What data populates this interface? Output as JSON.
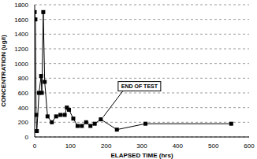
{
  "chart_data": {
    "type": "line",
    "x_label": "ELAPSED TIME (hrs)",
    "y_label": "CONCENTRATION (ug/l)",
    "x": [
      0,
      2,
      4,
      6,
      12,
      18,
      20,
      24,
      28,
      36,
      48,
      60,
      72,
      84,
      90,
      96,
      108,
      120,
      132,
      144,
      156,
      168,
      185,
      230,
      310,
      550
    ],
    "values": [
      1700,
      1600,
      300,
      80,
      600,
      830,
      600,
      1700,
      750,
      280,
      200,
      280,
      300,
      300,
      400,
      370,
      250,
      150,
      150,
      200,
      150,
      180,
      240,
      100,
      180,
      180
    ],
    "color": "#000000",
    "marker": "square",
    "xlim": [
      0,
      600
    ],
    "xticks": [
      0,
      100,
      200,
      300,
      400,
      500,
      600
    ],
    "ylim": [
      0,
      1800
    ],
    "yticks": [
      0,
      200,
      400,
      600,
      800,
      1000,
      1200,
      1400,
      1600,
      1800
    ],
    "grid": true,
    "annotations": [
      {
        "text": "END OF TEST",
        "x": 185,
        "y": 240
      }
    ]
  }
}
